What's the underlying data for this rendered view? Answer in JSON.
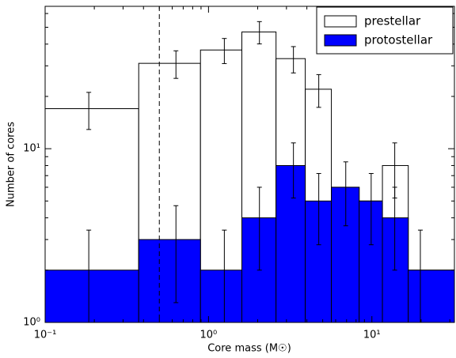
{
  "chart_data": {
    "type": "histogram",
    "x_label": "Core mass (M☉)",
    "y_label": "Number of cores",
    "xscale": "log",
    "yscale": "log",
    "bins": [
      0.1,
      0.374,
      0.893,
      1.6,
      2.59,
      3.91,
      5.65,
      8.36,
      11.6,
      16.7,
      32
    ],
    "series": [
      {
        "name": "prestellar",
        "color": "#ffffff",
        "values": [
          17,
          31,
          37,
          47,
          33,
          22,
          6,
          5,
          8,
          2
        ],
        "errors": [
          4.1,
          5.6,
          6.1,
          6.9,
          5.7,
          4.7,
          null,
          null,
          2.8,
          null
        ],
        "error_x": [
          0.185,
          0.632,
          1.25,
          2.05,
          3.31,
          4.73,
          6.92,
          9.9,
          13.8,
          19.8
        ]
      },
      {
        "name": "protostellar",
        "color": "#0000ff",
        "values": [
          2,
          3,
          2,
          4,
          8,
          5,
          6,
          5,
          4,
          2
        ],
        "errors": [
          1.4,
          1.7,
          1.4,
          2,
          2.8,
          2.2,
          2.4,
          2.2,
          2,
          1.4
        ],
        "error_x": [
          0.185,
          0.632,
          1.25,
          2.05,
          3.31,
          4.73,
          6.92,
          9.9,
          13.8,
          19.8
        ]
      }
    ],
    "vline": 0.5,
    "xlim": [
      0.1,
      32
    ],
    "ylim": [
      1,
      66
    ],
    "xticks": [
      {
        "value": 0.1,
        "label": "10⁻¹"
      },
      {
        "value": 1,
        "label": "10⁰"
      },
      {
        "value": 10,
        "label": "10¹"
      }
    ],
    "yticks": [
      {
        "value": 1,
        "label": "10⁰"
      },
      {
        "value": 10,
        "label": "10¹"
      }
    ],
    "xminor": [
      0.2,
      0.3,
      0.4,
      0.5,
      0.6,
      0.7,
      0.8,
      0.9,
      2,
      3,
      4,
      5,
      6,
      7,
      8,
      9,
      20,
      30
    ],
    "yminor": [
      2,
      3,
      4,
      5,
      6,
      7,
      8,
      9,
      20,
      30,
      40,
      50,
      60
    ],
    "legend": "upper right"
  }
}
